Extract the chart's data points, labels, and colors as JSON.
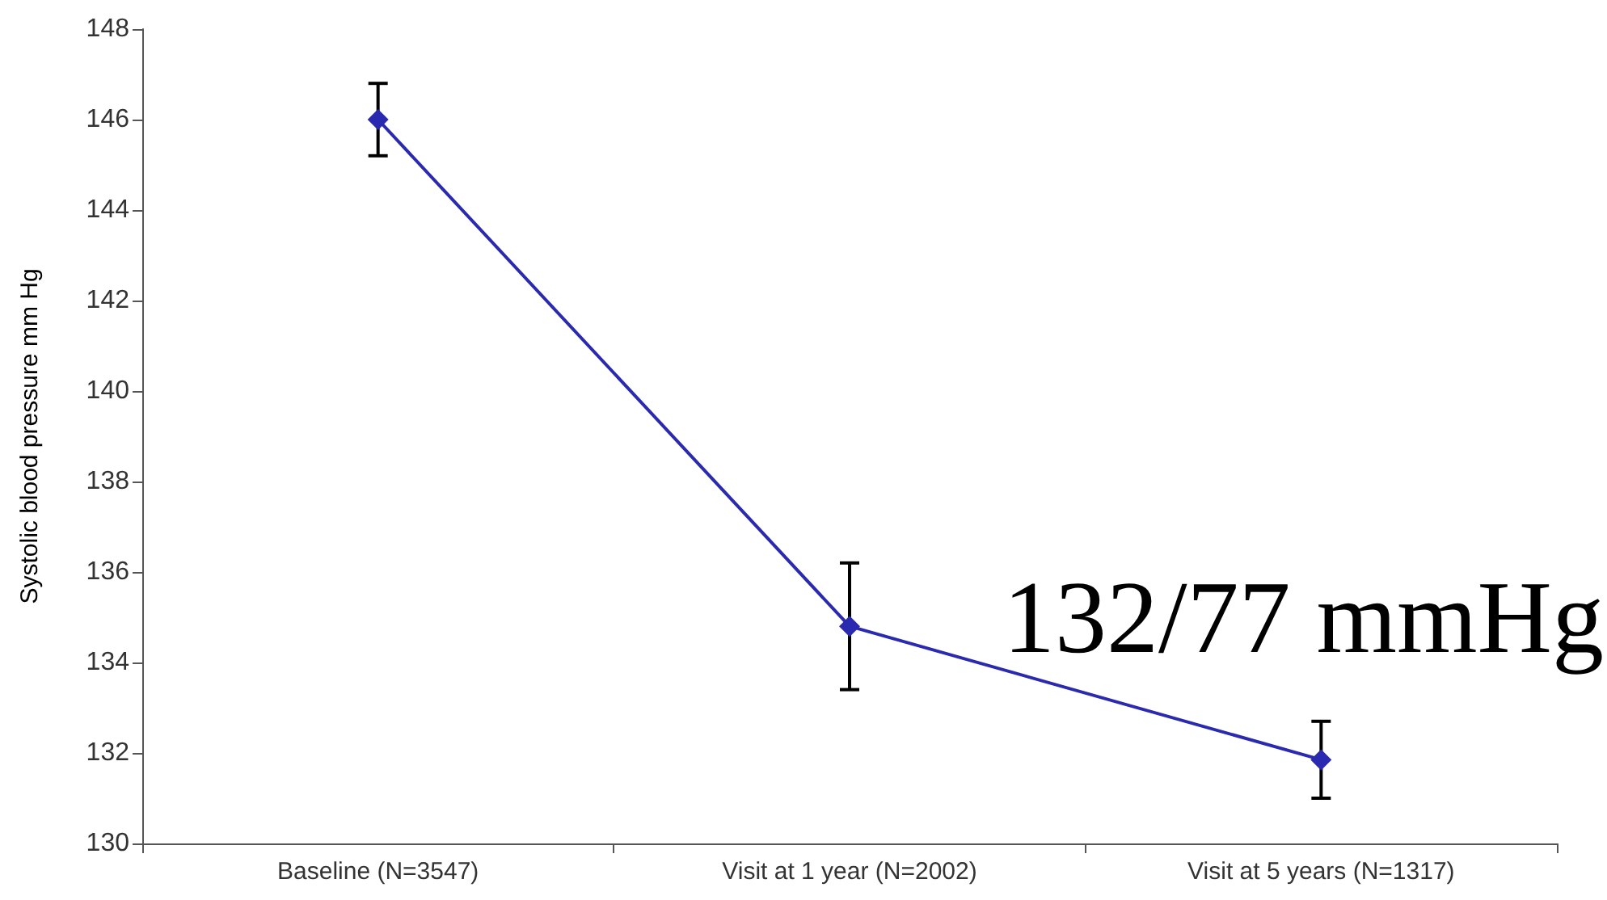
{
  "chart_data": {
    "type": "line",
    "ylabel": "Systolic blood pressure mm Hg",
    "categories": [
      "Baseline (N=3547)",
      "Visit at 1 year (N=2002)",
      "Visit at 5 years (N=1317)"
    ],
    "series": [
      {
        "color": "#2a2ab0",
        "values": [
          146.0,
          134.8,
          131.85
        ],
        "errors": [
          [
            145.2,
            146.8
          ],
          [
            133.4,
            136.2
          ],
          [
            131.0,
            132.7
          ]
        ]
      }
    ],
    "ylim": [
      130,
      148
    ],
    "yticks": [
      130,
      132,
      134,
      136,
      138,
      140,
      142,
      144,
      146,
      148
    ],
    "marker": "diamond",
    "grid": false,
    "annotations": [
      "132/77 mmHg"
    ]
  }
}
